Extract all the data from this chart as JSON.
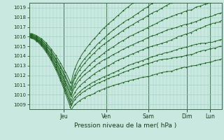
{
  "title": "",
  "xlabel": "Pression niveau de la mer( hPa )",
  "ylabel": "",
  "ylim": [
    1008.5,
    1019.5
  ],
  "yticks": [
    1009,
    1010,
    1011,
    1012,
    1013,
    1014,
    1015,
    1016,
    1017,
    1018,
    1019
  ],
  "day_labels": [
    "Jeu",
    "Ven",
    "Sam",
    "Dim",
    "Lun"
  ],
  "day_positions": [
    0.18,
    0.4,
    0.62,
    0.82,
    0.94
  ],
  "bg_color": "#c8e8e0",
  "line_color": "#1a5c1a",
  "grid_color": "#99ccbb",
  "n_points": 400
}
